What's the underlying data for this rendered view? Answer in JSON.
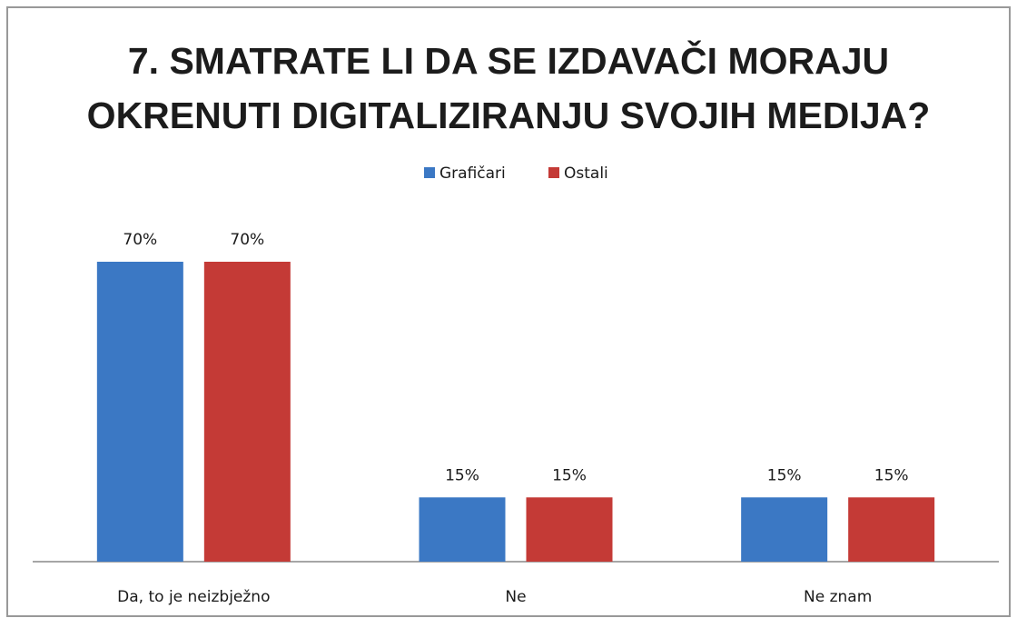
{
  "chart_data": {
    "type": "bar",
    "title": [
      "7. SMATRATE LI DA SE IZDAVAČI MORAJU",
      "OKRENUTI  DIGITALIZIRANJU SVOJIH MEDIJA?"
    ],
    "categories": [
      "Da, to je neizbježno",
      "Ne",
      "Ne znam"
    ],
    "series": [
      {
        "name": "Grafičari",
        "color": "#3b78c4",
        "values": [
          70,
          15,
          15
        ],
        "value_labels": [
          "70%",
          "15%",
          "15%"
        ]
      },
      {
        "name": "Ostali",
        "color": "#c43a36",
        "values": [
          70,
          15,
          15
        ],
        "value_labels": [
          "70%",
          "15%",
          "15%"
        ]
      }
    ],
    "legend": "top"
  }
}
